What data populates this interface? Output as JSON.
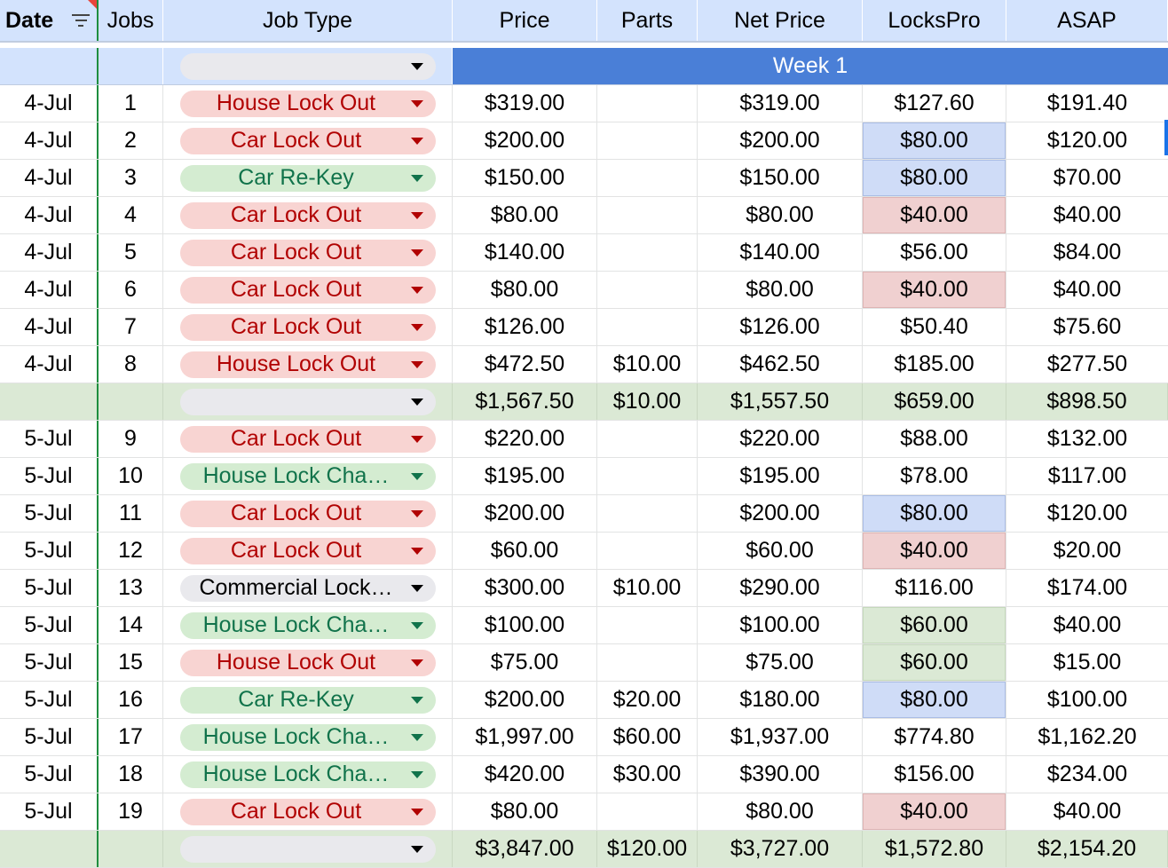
{
  "headers": [
    "Date",
    "Jobs",
    "Job Type",
    "Price",
    "Parts",
    "Net Price",
    "LocksPro",
    "ASAP"
  ],
  "week_label": "Week 1",
  "icons": {
    "filter": "filter-icon",
    "dropdown": "dropdown-arrow-icon"
  },
  "colors": {
    "header_bg": "#d3e3fd",
    "week_bar": "#4a7fd7",
    "subtotal_bg": "#dbe9d5",
    "chip_red": "#f8d4d2",
    "chip_green": "#d4ecd1",
    "chip_gray": "#e9e9ed",
    "freeze_line": "#1e8e3e"
  },
  "rows": [
    {
      "kind": "job",
      "date": "4-Jul",
      "job": "1",
      "type": "House Lock Out",
      "tone": "red",
      "price": "$319.00",
      "parts": "",
      "net": "$319.00",
      "lockspro": "$127.60",
      "lp_hl": "",
      "asap": "$191.40"
    },
    {
      "kind": "job",
      "date": "4-Jul",
      "job": "2",
      "type": "Car Lock Out",
      "tone": "red",
      "price": "$200.00",
      "parts": "",
      "net": "$200.00",
      "lockspro": "$80.00",
      "lp_hl": "blue",
      "asap": "$120.00"
    },
    {
      "kind": "job",
      "date": "4-Jul",
      "job": "3",
      "type": "Car Re-Key",
      "tone": "green",
      "price": "$150.00",
      "parts": "",
      "net": "$150.00",
      "lockspro": "$80.00",
      "lp_hl": "blue",
      "asap": "$70.00"
    },
    {
      "kind": "job",
      "date": "4-Jul",
      "job": "4",
      "type": "Car Lock Out",
      "tone": "red",
      "price": "$80.00",
      "parts": "",
      "net": "$80.00",
      "lockspro": "$40.00",
      "lp_hl": "red",
      "asap": "$40.00"
    },
    {
      "kind": "job",
      "date": "4-Jul",
      "job": "5",
      "type": "Car Lock Out",
      "tone": "red",
      "price": "$140.00",
      "parts": "",
      "net": "$140.00",
      "lockspro": "$56.00",
      "lp_hl": "",
      "asap": "$84.00"
    },
    {
      "kind": "job",
      "date": "4-Jul",
      "job": "6",
      "type": "Car Lock Out",
      "tone": "red",
      "price": "$80.00",
      "parts": "",
      "net": "$80.00",
      "lockspro": "$40.00",
      "lp_hl": "red",
      "asap": "$40.00"
    },
    {
      "kind": "job",
      "date": "4-Jul",
      "job": "7",
      "type": "Car Lock Out",
      "tone": "red",
      "price": "$126.00",
      "parts": "",
      "net": "$126.00",
      "lockspro": "$50.40",
      "lp_hl": "",
      "asap": "$75.60"
    },
    {
      "kind": "job",
      "date": "4-Jul",
      "job": "8",
      "type": "House Lock Out",
      "tone": "red",
      "price": "$472.50",
      "parts": "$10.00",
      "net": "$462.50",
      "lockspro": "$185.00",
      "lp_hl": "",
      "asap": "$277.50"
    },
    {
      "kind": "subtotal",
      "date": "",
      "job": "",
      "type": "",
      "tone": "gray",
      "price": "$1,567.50",
      "parts": "$10.00",
      "net": "$1,557.50",
      "lockspro": "$659.00",
      "lp_hl": "",
      "asap": "$898.50"
    },
    {
      "kind": "job",
      "date": "5-Jul",
      "job": "9",
      "type": "Car Lock Out",
      "tone": "red",
      "price": "$220.00",
      "parts": "",
      "net": "$220.00",
      "lockspro": "$88.00",
      "lp_hl": "",
      "asap": "$132.00"
    },
    {
      "kind": "job",
      "date": "5-Jul",
      "job": "10",
      "type": "House Lock Cha…",
      "tone": "green",
      "price": "$195.00",
      "parts": "",
      "net": "$195.00",
      "lockspro": "$78.00",
      "lp_hl": "",
      "asap": "$117.00"
    },
    {
      "kind": "job",
      "date": "5-Jul",
      "job": "11",
      "type": "Car Lock Out",
      "tone": "red",
      "price": "$200.00",
      "parts": "",
      "net": "$200.00",
      "lockspro": "$80.00",
      "lp_hl": "blue",
      "asap": "$120.00"
    },
    {
      "kind": "job",
      "date": "5-Jul",
      "job": "12",
      "type": "Car Lock Out",
      "tone": "red",
      "price": "$60.00",
      "parts": "",
      "net": "$60.00",
      "lockspro": "$40.00",
      "lp_hl": "red",
      "asap": "$20.00"
    },
    {
      "kind": "job",
      "date": "5-Jul",
      "job": "13",
      "type": "Commercial Lock…",
      "tone": "gray",
      "price": "$300.00",
      "parts": "$10.00",
      "net": "$290.00",
      "lockspro": "$116.00",
      "lp_hl": "",
      "asap": "$174.00"
    },
    {
      "kind": "job",
      "date": "5-Jul",
      "job": "14",
      "type": "House Lock Cha…",
      "tone": "green",
      "price": "$100.00",
      "parts": "",
      "net": "$100.00",
      "lockspro": "$60.00",
      "lp_hl": "green",
      "asap": "$40.00"
    },
    {
      "kind": "job",
      "date": "5-Jul",
      "job": "15",
      "type": "House Lock Out",
      "tone": "red",
      "price": "$75.00",
      "parts": "",
      "net": "$75.00",
      "lockspro": "$60.00",
      "lp_hl": "green",
      "asap": "$15.00"
    },
    {
      "kind": "job",
      "date": "5-Jul",
      "job": "16",
      "type": "Car Re-Key",
      "tone": "green",
      "price": "$200.00",
      "parts": "$20.00",
      "net": "$180.00",
      "lockspro": "$80.00",
      "lp_hl": "blue",
      "asap": "$100.00"
    },
    {
      "kind": "job",
      "date": "5-Jul",
      "job": "17",
      "type": "House Lock Cha…",
      "tone": "green",
      "price": "$1,997.00",
      "parts": "$60.00",
      "net": "$1,937.00",
      "lockspro": "$774.80",
      "lp_hl": "",
      "asap": "$1,162.20"
    },
    {
      "kind": "job",
      "date": "5-Jul",
      "job": "18",
      "type": "House Lock Cha…",
      "tone": "green",
      "price": "$420.00",
      "parts": "$30.00",
      "net": "$390.00",
      "lockspro": "$156.00",
      "lp_hl": "",
      "asap": "$234.00"
    },
    {
      "kind": "job",
      "date": "5-Jul",
      "job": "19",
      "type": "Car Lock Out",
      "tone": "red",
      "price": "$80.00",
      "parts": "",
      "net": "$80.00",
      "lockspro": "$40.00",
      "lp_hl": "red",
      "asap": "$40.00"
    },
    {
      "kind": "subtotal",
      "date": "",
      "job": "",
      "type": "",
      "tone": "gray",
      "price": "$3,847.00",
      "parts": "$120.00",
      "net": "$3,727.00",
      "lockspro": "$1,572.80",
      "lp_hl": "",
      "asap": "$2,154.20"
    }
  ]
}
